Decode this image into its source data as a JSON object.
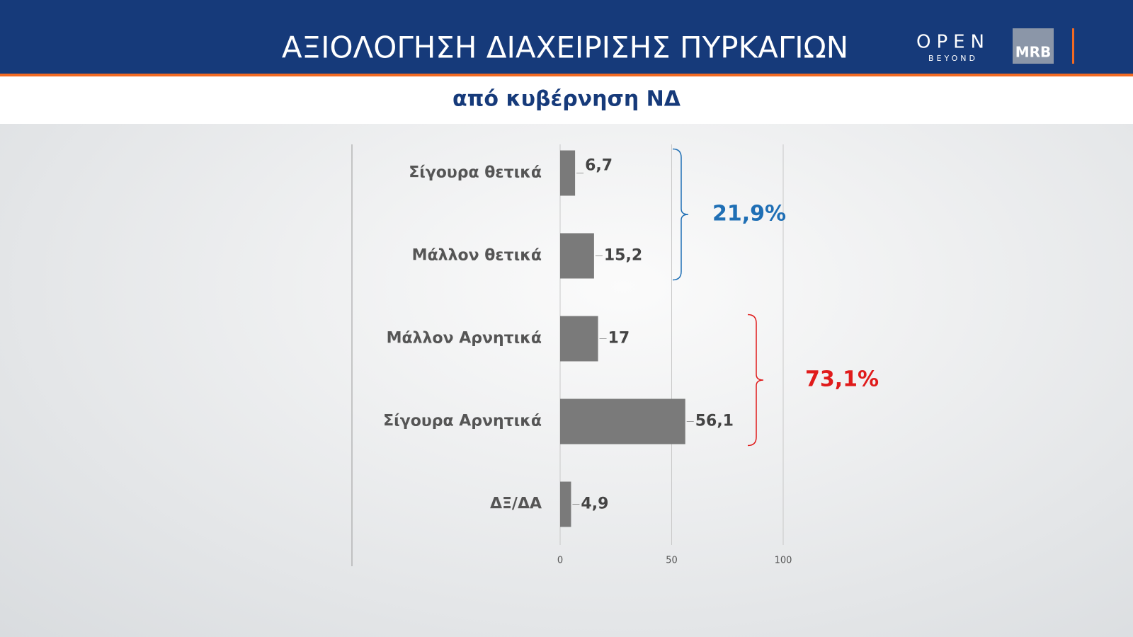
{
  "header": {
    "title": "ΑΞΙΟΛΟΓΗΣΗ ΔΙΑΧΕΙΡΙΣΗΣ ΠΥΡΚΑΓΙΩΝ",
    "logo": "OPEN",
    "logo_tagline": "BEYOND",
    "pollster": "MRB"
  },
  "chart_data": {
    "type": "bar",
    "orientation": "horizontal",
    "subtitle": "από κυβέρνηση ΝΔ",
    "categories": [
      "Σίγουρα θετικά",
      "Μάλλον θετικά",
      "Μάλλον Αρνητικά",
      "Σίγουρα Αρνητικά",
      "ΔΞ/ΔΑ"
    ],
    "values": [
      6.7,
      15.2,
      17,
      56.1,
      4.9
    ],
    "value_labels": [
      "6,7",
      "15,2",
      "17",
      "56,1",
      "4,9"
    ],
    "color": "#7a7a7a",
    "xlim": [
      0,
      100
    ],
    "xticks": [
      0,
      50,
      100
    ],
    "grid": true,
    "annotations": [
      {
        "text": "21,9%",
        "color": "#1f6fb5"
      },
      {
        "text": "73,1%",
        "color": "#e01b1b"
      }
    ]
  }
}
